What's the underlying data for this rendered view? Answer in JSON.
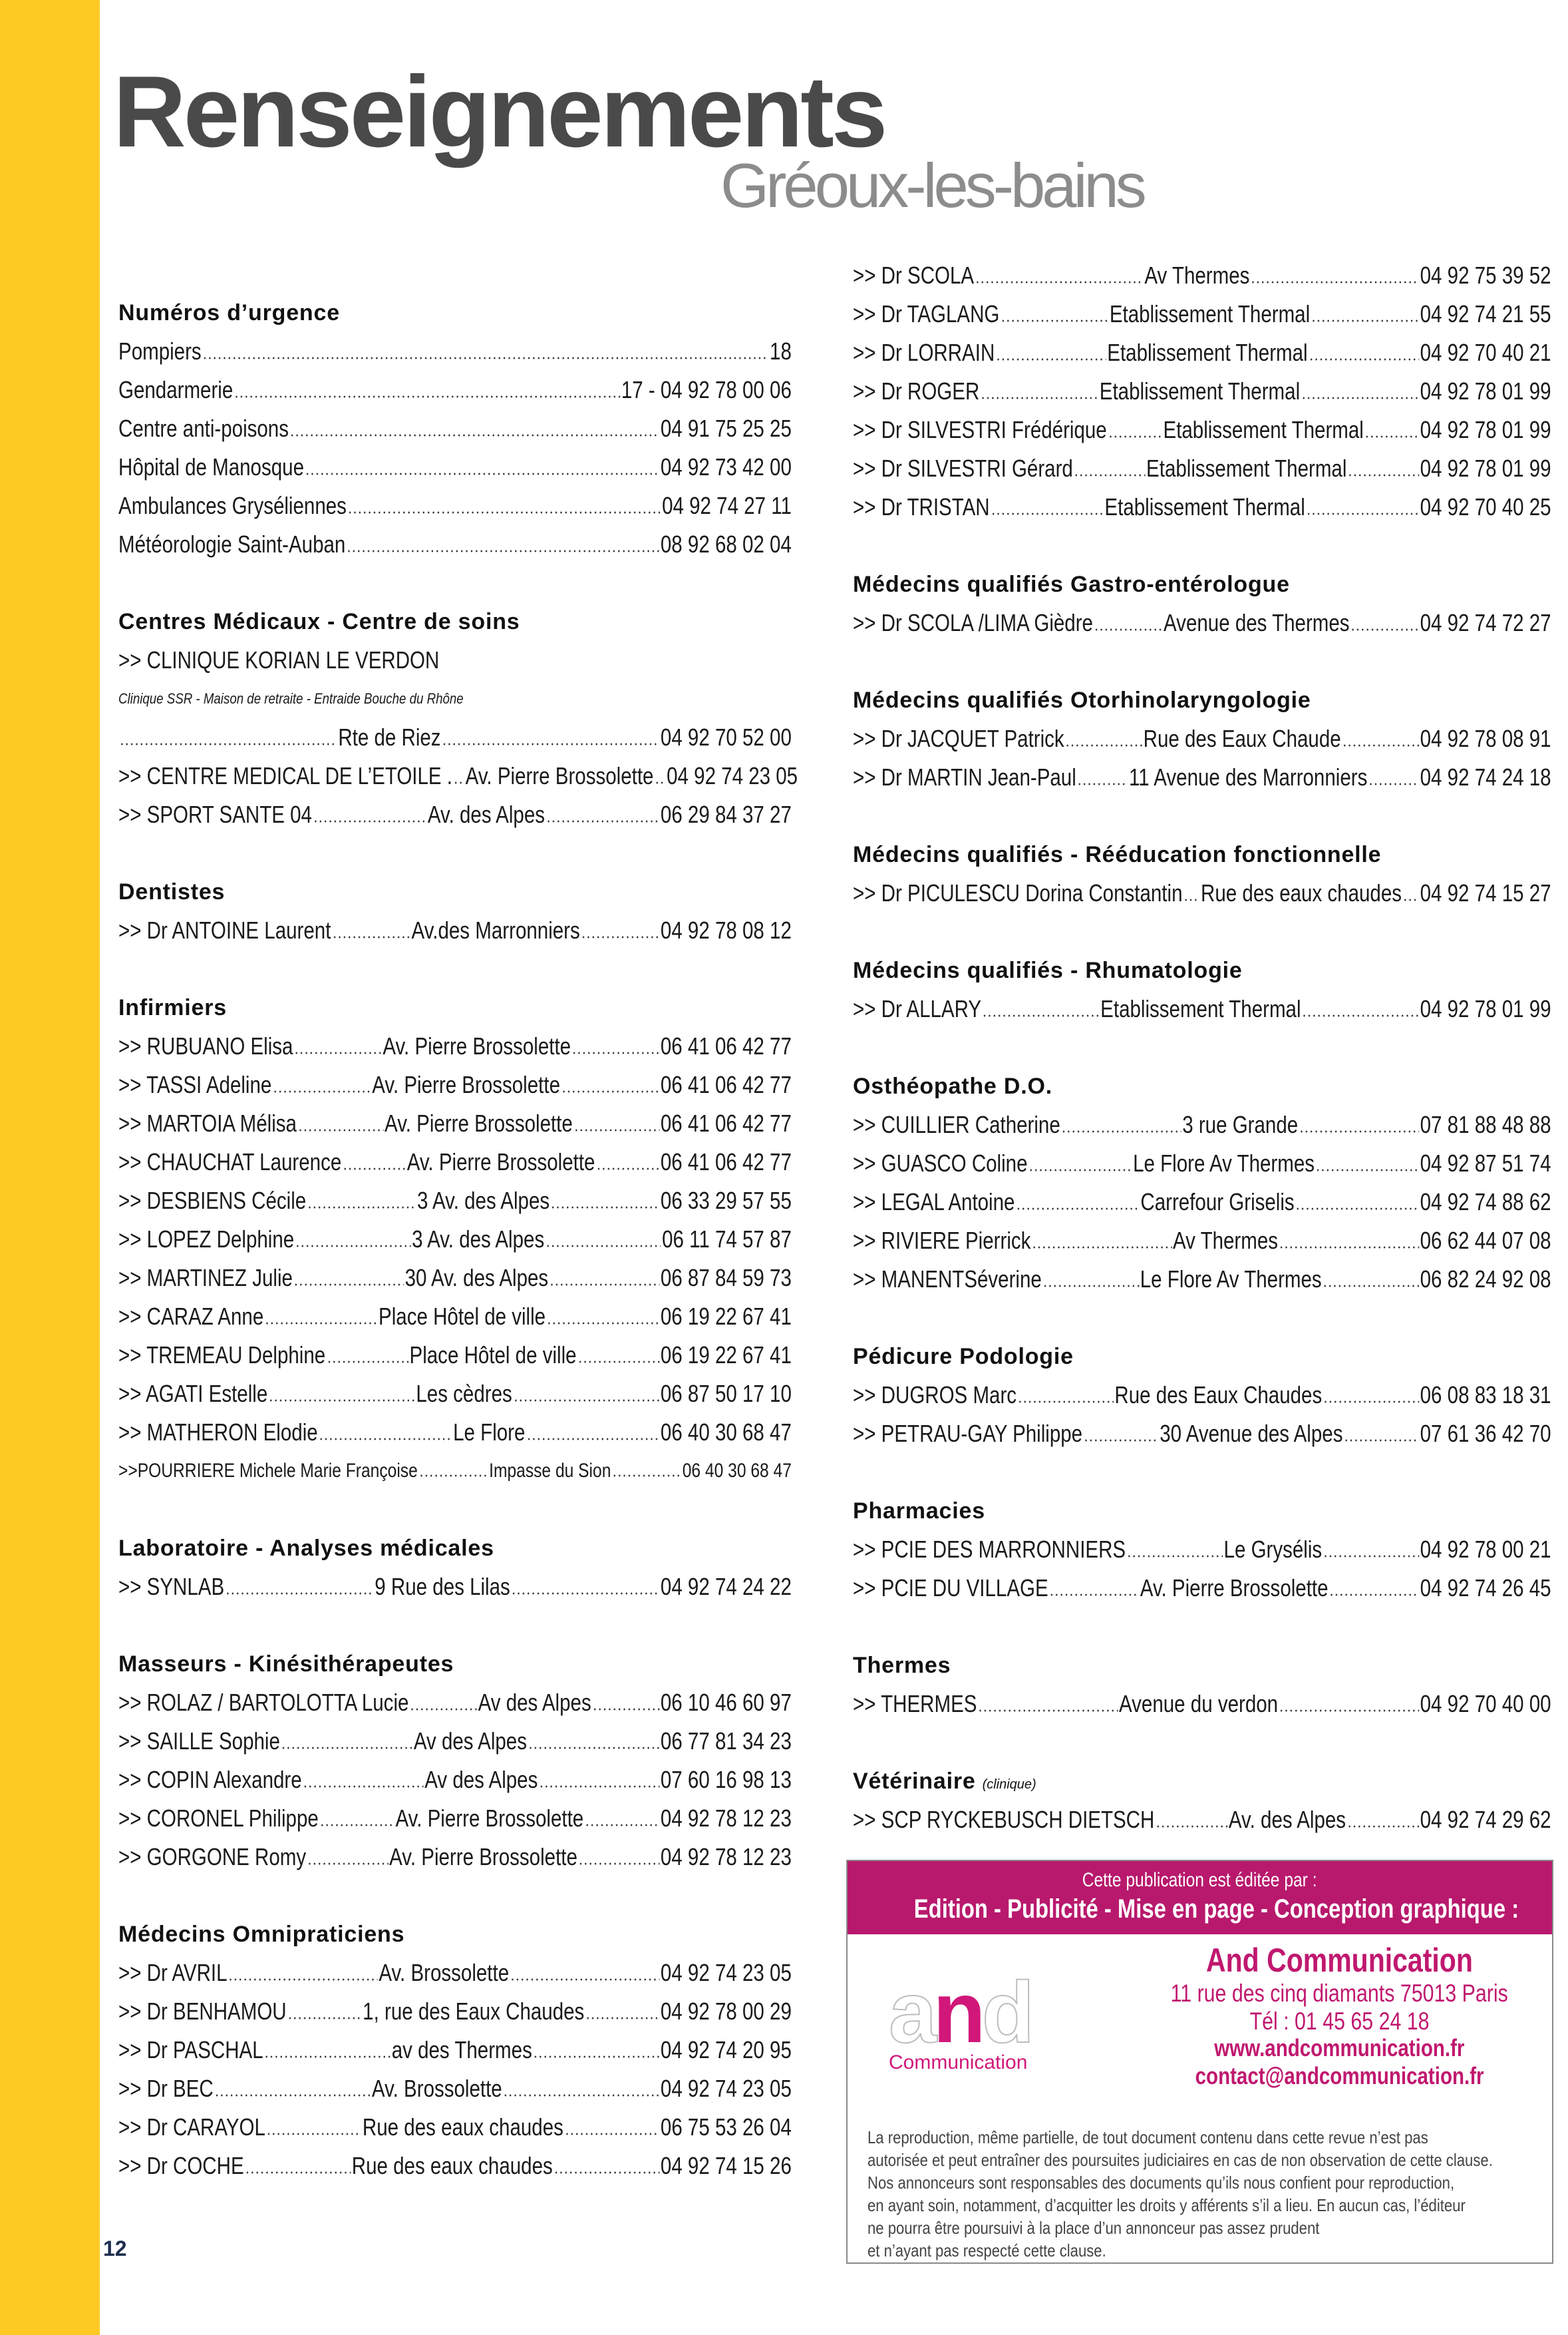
{
  "header": {
    "title": "Renseignements",
    "subtitle": "Gréoux-les-bains"
  },
  "page_number": "12",
  "colors": {
    "accent_yellow": "#fdc923",
    "brand_magenta": "#b8196d",
    "title_gray": "#4a4a4a"
  },
  "columns": {
    "left": [
      {
        "title": "Numéros d’urgence",
        "rows": [
          {
            "name": "Pompiers",
            "phone": "18"
          },
          {
            "name": "Gendarmerie",
            "phone": "17 - 04 92 78 00 06"
          },
          {
            "name": "Centre anti-poisons",
            "phone": "04 91 75 25 25"
          },
          {
            "name": "Hôpital de Manosque",
            "phone": "04 92 73 42 00"
          },
          {
            "name": "Ambulances Gryséliennes",
            "phone": "04 92 74 27 11"
          },
          {
            "name": "Météorologie Saint-Auban",
            "phone": "08 92 68 02 04"
          }
        ]
      },
      {
        "title": "Centres Médicaux - Centre de soins",
        "rows": [
          {
            "type": "plain",
            "name": ">> CLINIQUE KORIAN LE VERDON"
          },
          {
            "type": "note",
            "name": "Clinique SSR - Maison de retraite - Entraide Bouche du Rhône"
          },
          {
            "name": "",
            "addr": "Rte de Riez",
            "phone": "04 92 70 52 00"
          },
          {
            "name": ">> CENTRE MEDICAL DE L’ETOILE .",
            "addr": "Av. Pierre Brossolette",
            "phone": "04 92 74 23 05"
          },
          {
            "name": ">> SPORT SANTE 04",
            "addr": "Av. des Alpes",
            "phone": "06 29 84 37 27"
          }
        ]
      },
      {
        "title": "Dentistes",
        "rows": [
          {
            "name": ">> Dr ANTOINE Laurent",
            "addr": "Av.des Marronniers",
            "phone": "04 92 78 08 12"
          }
        ]
      },
      {
        "title": "Infirmiers",
        "rows": [
          {
            "name": ">> RUBUANO Elisa",
            "addr": "Av. Pierre Brossolette",
            "phone": "06 41 06 42 77"
          },
          {
            "name": ">> TASSI Adeline",
            "addr": "Av. Pierre Brossolette",
            "phone": "06 41 06 42 77"
          },
          {
            "name": ">> MARTOIA Mélisa",
            "addr": "Av. Pierre Brossolette",
            "phone": "06 41 06 42 77"
          },
          {
            "name": ">> CHAUCHAT Laurence",
            "addr": "Av. Pierre Brossolette",
            "phone": "06 41 06 42 77"
          },
          {
            "name": ">> DESBIENS Cécile",
            "addr": "3 Av. des Alpes",
            "phone": "06 33 29 57 55"
          },
          {
            "name": ">> LOPEZ Delphine",
            "addr": "3 Av. des Alpes",
            "phone": "06 11 74 57 87"
          },
          {
            "name": ">> MARTINEZ Julie",
            "addr": "30  Av. des Alpes",
            "phone": "06 87 84 59 73"
          },
          {
            "name": ">> CARAZ Anne",
            "addr": "Place Hôtel de ville",
            "phone": "06 19 22  67 41"
          },
          {
            "name": ">> TREMEAU Delphine",
            "addr": "Place Hôtel de ville",
            "phone": "06 19 22 67 41"
          },
          {
            "name": ">> AGATI Estelle",
            "addr": "Les cèdres",
            "phone": "06 87 50 17 10"
          },
          {
            "name": ">> MATHERON Elodie",
            "addr": "Le Flore",
            "phone": "06 40 30 68 47"
          },
          {
            "type": "small",
            "name": ">>POURRIERE Michele Marie Françoise",
            "addr": "Impasse du Sion",
            "phone": "06 40 30 68 47"
          }
        ]
      },
      {
        "title": "Laboratoire - Analyses médicales",
        "rows": [
          {
            "name": ">> SYNLAB",
            "addr": "9 Rue des Lilas",
            "phone": "04 92 74 24 22"
          }
        ]
      },
      {
        "title": "Masseurs - Kinésithérapeutes",
        "rows": [
          {
            "name": ">> ROLAZ / BARTOLOTTA Lucie",
            "addr": "Av des Alpes",
            "phone": "06 10 46 60 97"
          },
          {
            "name": ">> SAILLE Sophie",
            "addr": "Av des Alpes",
            "phone": "06 77 81 34 23"
          },
          {
            "name": ">> COPIN Alexandre",
            "addr": "Av des Alpes",
            "phone": "07 60 16 98 13"
          },
          {
            "name": ">> CORONEL Philippe",
            "addr": "Av. Pierre Brossolette",
            "phone": "04 92 78 12 23"
          },
          {
            "name": " >> GORGONE Romy",
            "addr": "Av. Pierre Brossolette",
            "phone": "04 92 78 12 23"
          }
        ]
      },
      {
        "title": "Médecins Omnipraticiens",
        "rows": [
          {
            "name": ">> Dr AVRIL",
            "addr": "Av. Brossolette",
            "phone": "04 92 74 23 05"
          },
          {
            "name": ">> Dr BENHAMOU",
            "addr": "1, rue des Eaux Chaudes",
            "phone": "04 92 78 00 29"
          },
          {
            "name": ">> Dr PASCHAL",
            "addr": "av des Thermes",
            "phone": "04 92 74 20 95"
          },
          {
            "name": ">> Dr BEC",
            "addr": "Av. Brossolette",
            "phone": "04 92 74 23 05"
          },
          {
            "name": ">> Dr CARAYOL",
            "addr": "Rue des eaux chaudes",
            "phone": "06 75 53 26 04"
          },
          {
            "name": ">> Dr COCHE",
            "addr": "Rue des eaux chaudes",
            "phone": "04 92 74 15 26"
          }
        ]
      }
    ],
    "right": [
      {
        "title": "",
        "rows": [
          {
            "name": ">> Dr SCOLA",
            "addr": "Av Thermes",
            "phone": "04 92 75 39 52"
          },
          {
            "name": ">> Dr TAGLANG",
            "addr": "Etablissement Thermal",
            "phone": "04 92 74 21 55"
          },
          {
            "name": ">> Dr LORRAIN",
            "addr": "Etablissement Thermal",
            "phone": "04 92 70 40 21"
          },
          {
            "name": ">> Dr ROGER",
            "addr": "Etablissement Thermal",
            "phone": "04 92 78 01 99"
          },
          {
            "name": ">> Dr SILVESTRI Frédérique",
            "addr": "Etablissement Thermal",
            "phone": "04 92 78 01 99"
          },
          {
            "name": ">> Dr SILVESTRI Gérard",
            "addr": "Etablissement Thermal",
            "phone": "04 92 78 01 99"
          },
          {
            "name": ">> Dr TRISTAN",
            "addr": "Etablissement Thermal",
            "phone": "04 92 70 40 25"
          }
        ]
      },
      {
        "title": "Médecins qualifiés Gastro-entérologue",
        "rows": [
          {
            "name": ">> Dr SCOLA /LIMA Gièdre",
            "addr": "Avenue des Thermes",
            "phone": "04 92 74 72 27"
          }
        ]
      },
      {
        "title": "Médecins qualifiés Otorhinolaryngologie",
        "rows": [
          {
            "name": ">> Dr JACQUET Patrick",
            "addr": "Rue des Eaux Chaude",
            "phone": "04 92 78 08 91"
          },
          {
            "name": ">> Dr MARTIN Jean-Paul",
            "addr": "11 Avenue des Marronniers",
            "phone": "04 92 74 24 18"
          }
        ]
      },
      {
        "title": "Médecins qualifiés - Rééducation fonctionnelle",
        "rows": [
          {
            "name": ">> Dr PICULESCU Dorina Constantin",
            "addr": "Rue des eaux chaudes",
            "phone": "04 92 74 15 27"
          }
        ]
      },
      {
        "title": "Médecins qualifiés - Rhumatologie",
        "rows": [
          {
            "name": ">> Dr ALLARY",
            "addr": "Etablissement Thermal",
            "phone": "04 92 78 01 99"
          }
        ]
      },
      {
        "title": "Osthéopathe D.O.",
        "rows": [
          {
            "name": ">> CUILLIER Catherine",
            "addr": "3 rue Grande",
            "phone": "07 81 88 48 88"
          },
          {
            "name": ">> GUASCO Coline",
            "addr": "Le Flore Av Thermes",
            "phone": "04 92 87 51 74"
          },
          {
            "name": ">> LEGAL Antoine",
            "addr": "Carrefour Griselis",
            "phone": "04 92 74 88 62"
          },
          {
            "name": ">> RIVIERE Pierrick",
            "addr": "Av Thermes",
            "phone": "06 62 44 07 08"
          },
          {
            "name": ">> MANENTSéverine",
            "addr": "Le Flore Av Thermes",
            "phone": "06 82 24 92 08"
          }
        ]
      },
      {
        "title": "Pédicure Podologie",
        "rows": [
          {
            "name": ">> DUGROS Marc",
            "addr": "Rue des Eaux Chaudes",
            "phone": "06 08 83 18 31"
          },
          {
            "name": ">> PETRAU-GAY Philippe",
            "addr": "30 Avenue des Alpes",
            "phone": "07 61 36 42 70"
          }
        ]
      },
      {
        "title": "Pharmacies",
        "rows": [
          {
            "name": ">> PCIE DES MARRONNIERS",
            "addr": "Le Grysélis",
            "phone": "04 92 78 00 21"
          },
          {
            "name": ">> PCIE DU VILLAGE",
            "addr": "Av. Pierre Brossolette",
            "phone": "04 92 74 26 45"
          }
        ]
      },
      {
        "title": "Thermes",
        "rows": [
          {
            "name": ">> THERMES",
            "addr": "Avenue du verdon",
            "phone": "04 92 70 40 00"
          }
        ]
      },
      {
        "title": "Vétérinaire",
        "title_note": "(clinique)",
        "rows": [
          {
            "name": ">> SCP RYCKEBUSCH DIETSCH",
            "addr": "Av. des Alpes",
            "phone": "04 92 74 29 62"
          }
        ]
      }
    ]
  },
  "ad": {
    "header_small": "Cette publication est éditée par :",
    "header_big": "Edition - Publicité - Mise en page - Conception graphique :",
    "logo": {
      "letters": [
        "a",
        "n",
        "d"
      ],
      "sub": "Communication"
    },
    "company": "And Communication",
    "address": "11 rue des cinq diamants 75013 Paris",
    "tel": "Tél : 01 45 65 24 18",
    "web": "www.andcommunication.fr",
    "email": "contact@andcommunication.fr",
    "disclaimer": [
      "La reproduction, même partielle, de tout document contenu dans cette revue n’est pas",
      "autorisée et peut entraîner des poursuites judiciaires en cas de non observation de cette clause.",
      "Nos annonceurs sont responsables des documents qu’ils nous confient pour reproduction,",
      "en ayant soin, notamment, d’acquitter les droits y afférents s’il a lieu. En aucun cas, l’éditeur",
      "ne pourra être poursuivi à la place d’un annonceur pas assez prudent",
      "et n’ayant pas respecté cette clause."
    ]
  }
}
